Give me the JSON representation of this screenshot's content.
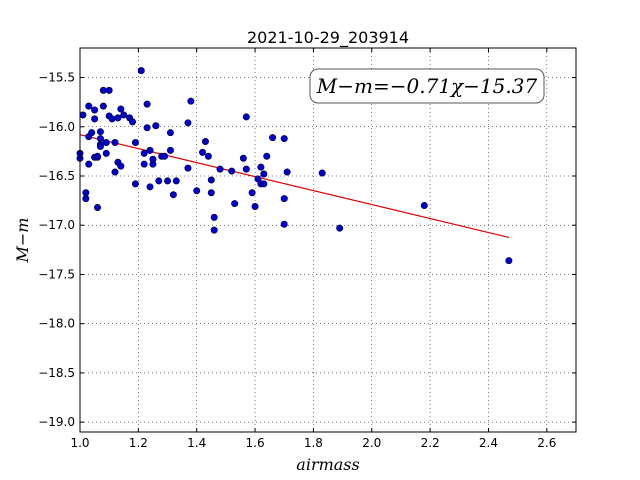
{
  "chart_data": {
    "type": "scatter",
    "title": "2021-10-29_203914",
    "xlabel": "airmass",
    "ylabel": "M−m",
    "xlim": [
      1.0,
      2.7
    ],
    "ylim": [
      -19.1,
      -15.2
    ],
    "x_ticks": [
      1.0,
      1.2,
      1.4,
      1.6,
      1.8,
      2.0,
      2.2,
      2.4,
      2.6
    ],
    "x_tick_labels": [
      "1.0",
      "1.2",
      "1.4",
      "1.6",
      "1.8",
      "2.0",
      "2.2",
      "2.4",
      "2.6"
    ],
    "y_ticks": [
      -15.5,
      -16.0,
      -16.5,
      -17.0,
      -17.5,
      -18.0,
      -18.5,
      -19.0
    ],
    "y_tick_labels": [
      "−15.5",
      "−16.0",
      "−16.5",
      "−17.0",
      "−17.5",
      "−18.0",
      "−18.5",
      "−19.0"
    ],
    "grid": true,
    "annotation": "M−m=−0.71χ−15.37",
    "fit": {
      "slope": -0.71,
      "intercept": -15.37,
      "x_range": [
        1.0,
        2.47
      ]
    },
    "colors": {
      "points": "#0000cc",
      "fit_line": "#dd0000"
    },
    "series": [
      {
        "points": [
          [
            1.0,
            -16.27
          ],
          [
            1.0,
            -16.32
          ],
          [
            1.01,
            -15.88
          ],
          [
            1.02,
            -16.67
          ],
          [
            1.02,
            -16.73
          ],
          [
            1.03,
            -16.38
          ],
          [
            1.03,
            -16.1
          ],
          [
            1.03,
            -15.79
          ],
          [
            1.04,
            -16.06
          ],
          [
            1.05,
            -15.83
          ],
          [
            1.05,
            -16.31
          ],
          [
            1.05,
            -15.92
          ],
          [
            1.06,
            -16.31
          ],
          [
            1.06,
            -16.3
          ],
          [
            1.06,
            -16.82
          ],
          [
            1.07,
            -16.05
          ],
          [
            1.07,
            -16.12
          ],
          [
            1.07,
            -16.18
          ],
          [
            1.07,
            -16.2
          ],
          [
            1.08,
            -15.63
          ],
          [
            1.08,
            -15.79
          ],
          [
            1.09,
            -16.27
          ],
          [
            1.09,
            -16.16
          ],
          [
            1.1,
            -15.63
          ],
          [
            1.1,
            -15.89
          ],
          [
            1.11,
            -15.92
          ],
          [
            1.12,
            -16.16
          ],
          [
            1.12,
            -16.46
          ],
          [
            1.13,
            -16.36
          ],
          [
            1.13,
            -15.91
          ],
          [
            1.14,
            -15.82
          ],
          [
            1.14,
            -16.4
          ],
          [
            1.15,
            -15.88
          ],
          [
            1.17,
            -15.91
          ],
          [
            1.18,
            -15.95
          ],
          [
            1.19,
            -16.58
          ],
          [
            1.19,
            -16.16
          ],
          [
            1.21,
            -15.43
          ],
          [
            1.22,
            -16.27
          ],
          [
            1.22,
            -16.38
          ],
          [
            1.23,
            -16.01
          ],
          [
            1.23,
            -15.77
          ],
          [
            1.24,
            -16.24
          ],
          [
            1.24,
            -16.61
          ],
          [
            1.25,
            -16.38
          ],
          [
            1.25,
            -16.33
          ],
          [
            1.26,
            -15.99
          ],
          [
            1.27,
            -16.55
          ],
          [
            1.28,
            -16.3
          ],
          [
            1.29,
            -16.3
          ],
          [
            1.3,
            -16.55
          ],
          [
            1.31,
            -16.24
          ],
          [
            1.31,
            -16.06
          ],
          [
            1.32,
            -16.69
          ],
          [
            1.33,
            -16.55
          ],
          [
            1.37,
            -16.42
          ],
          [
            1.37,
            -15.96
          ],
          [
            1.38,
            -15.74
          ],
          [
            1.4,
            -16.65
          ],
          [
            1.42,
            -16.26
          ],
          [
            1.43,
            -16.15
          ],
          [
            1.44,
            -16.3
          ],
          [
            1.45,
            -16.54
          ],
          [
            1.45,
            -16.67
          ],
          [
            1.46,
            -16.92
          ],
          [
            1.46,
            -17.05
          ],
          [
            1.48,
            -16.43
          ],
          [
            1.52,
            -16.45
          ],
          [
            1.53,
            -16.78
          ],
          [
            1.56,
            -16.32
          ],
          [
            1.57,
            -15.9
          ],
          [
            1.57,
            -16.43
          ],
          [
            1.59,
            -16.67
          ],
          [
            1.6,
            -16.81
          ],
          [
            1.61,
            -16.53
          ],
          [
            1.62,
            -16.41
          ],
          [
            1.62,
            -16.58
          ],
          [
            1.63,
            -16.48
          ],
          [
            1.63,
            -16.58
          ],
          [
            1.64,
            -16.3
          ],
          [
            1.66,
            -16.11
          ],
          [
            1.7,
            -16.73
          ],
          [
            1.7,
            -16.99
          ],
          [
            1.7,
            -16.12
          ],
          [
            1.71,
            -16.46
          ],
          [
            1.83,
            -16.47
          ],
          [
            1.89,
            -17.03
          ],
          [
            2.18,
            -16.8
          ],
          [
            2.47,
            -17.36
          ]
        ]
      }
    ]
  }
}
